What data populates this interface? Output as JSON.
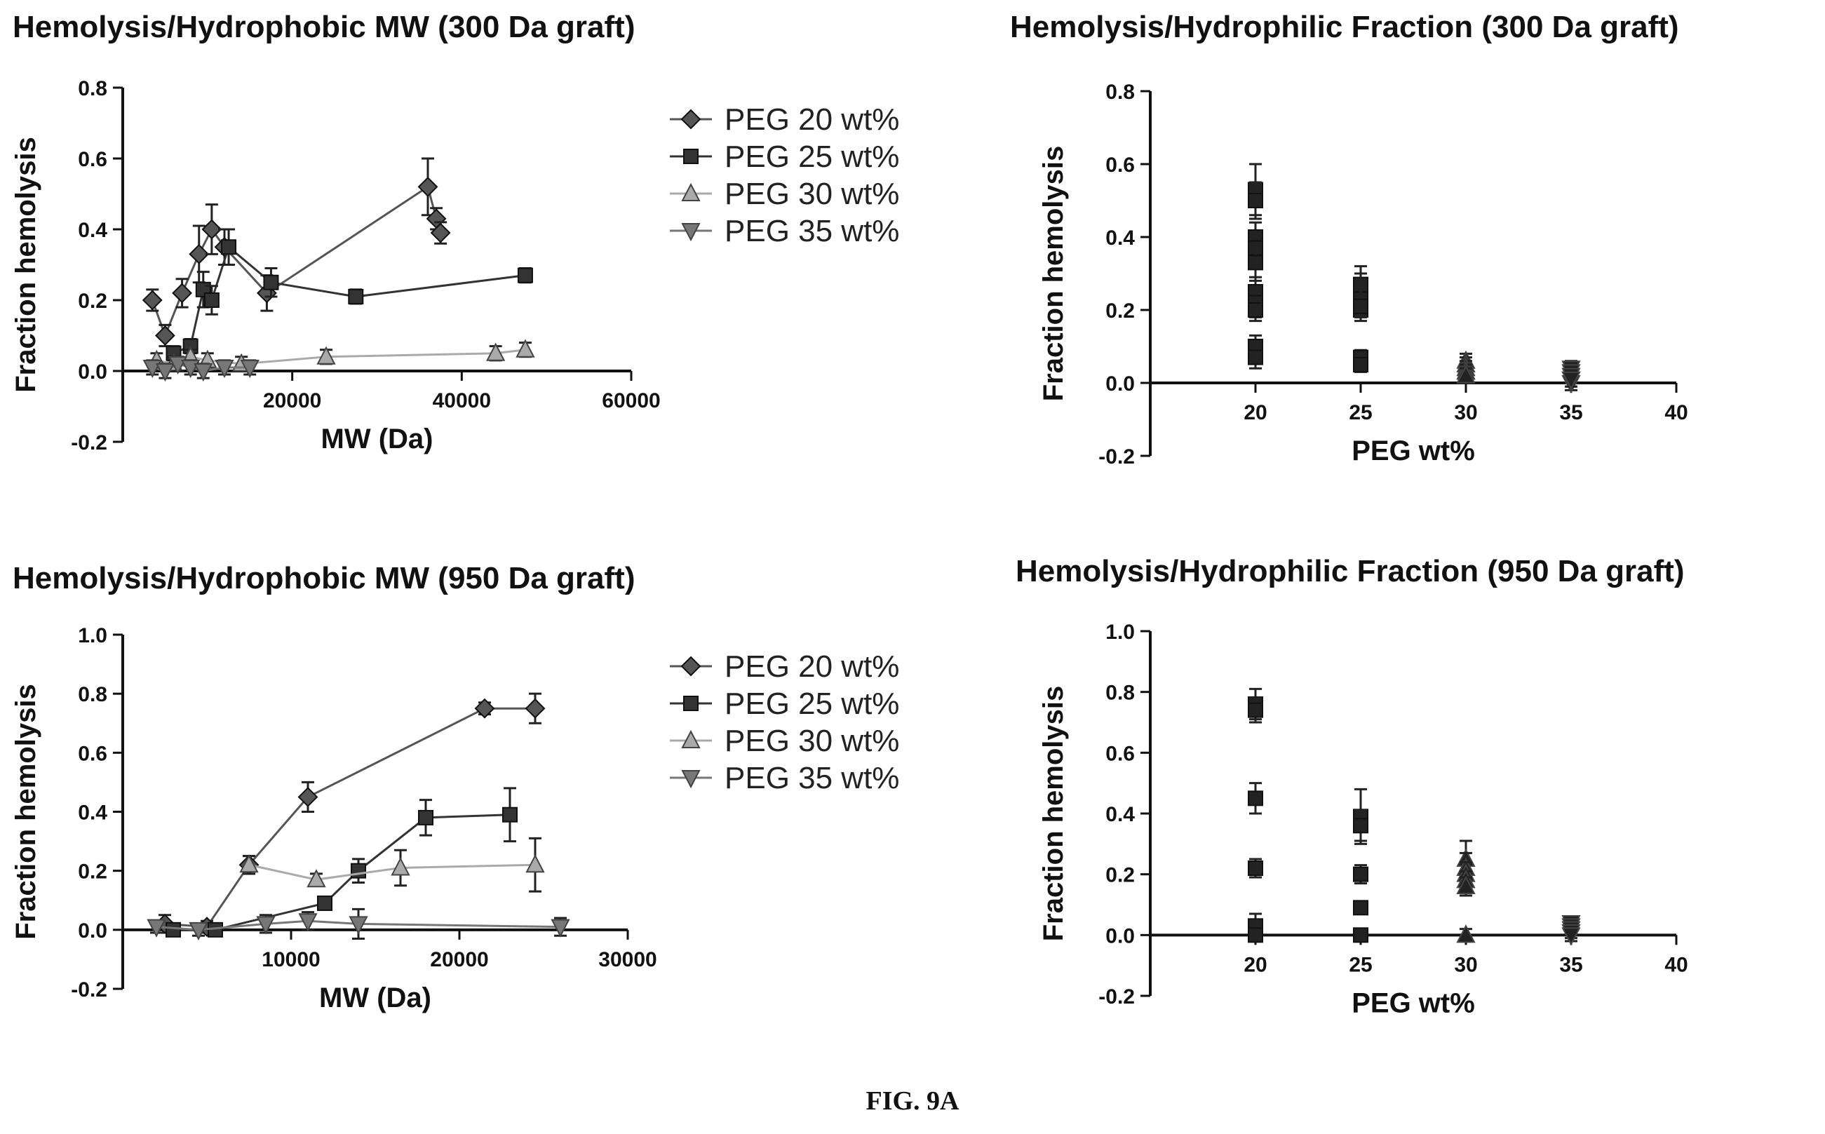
{
  "figure_caption": "FIG. 9A",
  "chart_data": [
    {
      "type": "line",
      "title": "Hemolysis/Hydrophobic MW (300 Da graft)",
      "xlabel": "MW (Da)",
      "ylabel": "Fraction hemolysis",
      "xlim": [
        0,
        60000
      ],
      "ylim": [
        -0.2,
        0.8
      ],
      "xticks": [
        20000,
        40000,
        60000
      ],
      "yticks": [
        -0.2,
        0.0,
        0.2,
        0.4,
        0.6,
        0.8
      ],
      "xtick_labels": [
        "20000",
        "40000",
        "60000"
      ],
      "ytick_labels": [
        "-0.2",
        "0.0",
        "0.2",
        "0.4",
        "0.6",
        "0.8"
      ],
      "legend_position": "right",
      "series": [
        {
          "name": "PEG 20 wt%",
          "color": "#555555",
          "marker": "diamond",
          "x": [
            3500,
            5000,
            7000,
            9000,
            10500,
            12000,
            17000,
            36000,
            37000,
            37500
          ],
          "y": [
            0.2,
            0.1,
            0.22,
            0.33,
            0.4,
            0.35,
            0.22,
            0.52,
            0.43,
            0.39
          ],
          "err": [
            0.03,
            0.03,
            0.04,
            0.08,
            0.07,
            0.05,
            0.05,
            0.08,
            0.03,
            0.03
          ]
        },
        {
          "name": "PEG 25 wt%",
          "color": "#333333",
          "marker": "square",
          "x": [
            6000,
            8000,
            9500,
            10500,
            12500,
            17500,
            27500,
            47500
          ],
          "y": [
            0.05,
            0.07,
            0.23,
            0.2,
            0.35,
            0.25,
            0.21,
            0.27
          ],
          "err": [
            0.02,
            0.02,
            0.05,
            0.04,
            0.05,
            0.04,
            0.02,
            0.02
          ]
        },
        {
          "name": "PEG 30 wt%",
          "color": "#aaaaaa",
          "marker": "triangle-up",
          "x": [
            4000,
            6000,
            8000,
            10000,
            14000,
            24000,
            44000,
            47500
          ],
          "y": [
            0.03,
            0.02,
            0.04,
            0.03,
            0.02,
            0.04,
            0.05,
            0.06
          ],
          "err": [
            0.02,
            0.02,
            0.02,
            0.02,
            0.02,
            0.02,
            0.02,
            0.02
          ]
        },
        {
          "name": "PEG 35 wt%",
          "color": "#777777",
          "marker": "triangle-down",
          "x": [
            3500,
            5000,
            6500,
            8000,
            9500,
            12000,
            15000
          ],
          "y": [
            0.01,
            0.0,
            0.02,
            0.01,
            0.0,
            0.01,
            0.01
          ],
          "err": [
            0.02,
            0.02,
            0.02,
            0.02,
            0.02,
            0.02,
            0.02
          ]
        }
      ]
    },
    {
      "type": "scatter",
      "title": "Hemolysis/Hydrophilic Fraction (300 Da graft)",
      "xlabel": "PEG wt%",
      "ylabel": "Fraction hemolysis",
      "xlim": [
        15,
        40
      ],
      "ylim": [
        -0.2,
        0.8
      ],
      "xticks": [
        20,
        25,
        30,
        35,
        40
      ],
      "yticks": [
        -0.2,
        0.0,
        0.2,
        0.4,
        0.6,
        0.8
      ],
      "xtick_labels": [
        "20",
        "25",
        "30",
        "35",
        "40"
      ],
      "ytick_labels": [
        "-0.2",
        "0.0",
        "0.2",
        "0.4",
        "0.6",
        "0.8"
      ],
      "series": [
        {
          "color": "#222222",
          "marker": "square",
          "x": [
            20,
            20,
            20,
            20,
            20,
            20,
            20,
            20,
            20,
            20
          ],
          "y": [
            0.53,
            0.5,
            0.4,
            0.37,
            0.33,
            0.25,
            0.22,
            0.2,
            0.1,
            0.07
          ],
          "err": [
            0.07,
            0.05,
            0.04,
            0.04,
            0.05,
            0.04,
            0.04,
            0.03,
            0.03,
            0.03
          ]
        },
        {
          "color": "#222222",
          "marker": "square",
          "x": [
            25,
            25,
            25,
            25,
            25,
            25,
            25,
            25
          ],
          "y": [
            0.27,
            0.25,
            0.23,
            0.22,
            0.2,
            0.21,
            0.07,
            0.05
          ],
          "err": [
            0.05,
            0.05,
            0.04,
            0.04,
            0.03,
            0.03,
            0.02,
            0.02
          ]
        },
        {
          "color": "#222222",
          "marker": "triangle-up",
          "x": [
            30,
            30,
            30,
            30,
            30,
            30,
            30
          ],
          "y": [
            0.06,
            0.05,
            0.04,
            0.03,
            0.02,
            0.03,
            0.02
          ],
          "err": [
            0.02,
            0.02,
            0.02,
            0.02,
            0.02,
            0.02,
            0.02
          ]
        },
        {
          "color": "#222222",
          "marker": "triangle-down",
          "x": [
            35,
            35,
            35,
            35,
            35,
            35
          ],
          "y": [
            0.04,
            0.03,
            0.02,
            0.01,
            0.0,
            0.01
          ],
          "err": [
            0.02,
            0.02,
            0.02,
            0.02,
            0.02,
            0.02
          ]
        }
      ]
    },
    {
      "type": "line",
      "title": "Hemolysis/Hydrophobic MW (950 Da graft)",
      "xlabel": "MW (Da)",
      "ylabel": "Fraction hemolysis",
      "xlim": [
        0,
        30000
      ],
      "ylim": [
        -0.2,
        1.0
      ],
      "xticks": [
        10000,
        20000,
        30000
      ],
      "yticks": [
        -0.2,
        0.0,
        0.2,
        0.4,
        0.6,
        0.8,
        1.0
      ],
      "xtick_labels": [
        "10000",
        "20000",
        "30000"
      ],
      "ytick_labels": [
        "-0.2",
        "0.0",
        "0.2",
        "0.4",
        "0.6",
        "0.8",
        "1.0"
      ],
      "legend_position": "right",
      "series": [
        {
          "name": "PEG 20 wt%",
          "color": "#555555",
          "marker": "diamond",
          "x": [
            2500,
            5000,
            7500,
            11000,
            21500,
            24500
          ],
          "y": [
            0.02,
            0.01,
            0.22,
            0.45,
            0.75,
            0.75
          ],
          "err": [
            0.03,
            0.02,
            0.03,
            0.05,
            0.02,
            0.05
          ]
        },
        {
          "name": "PEG 25 wt%",
          "color": "#333333",
          "marker": "square",
          "x": [
            3000,
            5500,
            12000,
            14000,
            18000,
            23000
          ],
          "y": [
            0.0,
            0.0,
            0.09,
            0.2,
            0.38,
            0.39
          ],
          "err": [
            0.02,
            0.02,
            0.02,
            0.04,
            0.06,
            0.09
          ]
        },
        {
          "name": "PEG 30 wt%",
          "color": "#aaaaaa",
          "marker": "triangle-up",
          "x": [
            7500,
            11500,
            16500,
            24500
          ],
          "y": [
            0.22,
            0.17,
            0.21,
            0.22
          ],
          "err": [
            0.03,
            0.02,
            0.06,
            0.09
          ]
        },
        {
          "name": "PEG 35 wt%",
          "color": "#777777",
          "marker": "triangle-down",
          "x": [
            2000,
            4500,
            8500,
            11000,
            14000,
            26000
          ],
          "y": [
            0.01,
            0.0,
            0.02,
            0.03,
            0.02,
            0.01
          ],
          "err": [
            0.02,
            0.02,
            0.03,
            0.03,
            0.05,
            0.03
          ]
        }
      ]
    },
    {
      "type": "scatter",
      "title": "Hemolysis/Hydrophilic Fraction (950 Da graft)",
      "xlabel": "PEG wt%",
      "ylabel": "Fraction hemolysis",
      "xlim": [
        15,
        40
      ],
      "ylim": [
        -0.2,
        1.0
      ],
      "xticks": [
        20,
        25,
        30,
        35,
        40
      ],
      "yticks": [
        -0.2,
        0.0,
        0.2,
        0.4,
        0.6,
        0.8,
        1.0
      ],
      "xtick_labels": [
        "20",
        "25",
        "30",
        "35",
        "40"
      ],
      "ytick_labels": [
        "-0.2",
        "0.0",
        "0.2",
        "0.4",
        "0.6",
        "0.8",
        "1.0"
      ],
      "series": [
        {
          "color": "#222222",
          "marker": "square",
          "x": [
            20,
            20,
            20,
            20,
            20,
            20
          ],
          "y": [
            0.76,
            0.74,
            0.45,
            0.22,
            0.03,
            0.0
          ],
          "err": [
            0.05,
            0.04,
            0.05,
            0.03,
            0.04,
            0.02
          ]
        },
        {
          "color": "#222222",
          "marker": "square",
          "x": [
            25,
            25,
            25,
            25,
            25
          ],
          "y": [
            0.39,
            0.36,
            0.2,
            0.09,
            0.0
          ],
          "err": [
            0.09,
            0.05,
            0.03,
            0.02,
            0.02
          ]
        },
        {
          "color": "#222222",
          "marker": "triangle-up",
          "x": [
            30,
            30,
            30,
            30,
            30,
            30
          ],
          "y": [
            0.25,
            0.22,
            0.2,
            0.18,
            0.16,
            0.0
          ],
          "err": [
            0.06,
            0.05,
            0.04,
            0.03,
            0.03,
            0.02
          ]
        },
        {
          "color": "#222222",
          "marker": "triangle-down",
          "x": [
            35,
            35,
            35,
            35,
            35
          ],
          "y": [
            0.04,
            0.03,
            0.02,
            0.01,
            0.0
          ],
          "err": [
            0.02,
            0.02,
            0.02,
            0.02,
            0.02
          ]
        }
      ]
    }
  ]
}
